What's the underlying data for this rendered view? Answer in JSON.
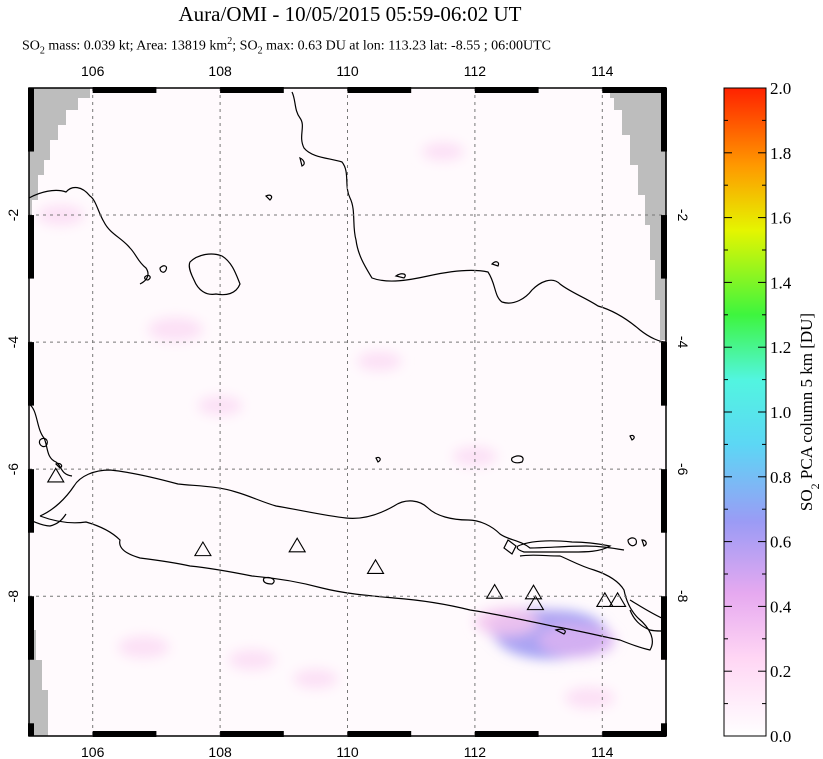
{
  "chart_data": {
    "type": "heatmap",
    "title": "Aura/OMI - 10/05/2015 05:59-06:02 UT",
    "subtitle": {
      "prefix": "SO",
      "p1": " mass: 0.039 kt; Area: 13819 km",
      "p2": "; SO",
      "p3": " max: 0.63 DU at lon: 113.23 lat: -8.55 ; 06:00UTC",
      "sub": "2",
      "sup": "2"
    },
    "x_axis": {
      "range": [
        105.0,
        115.0
      ],
      "ticks": [
        106,
        108,
        110,
        112,
        114
      ],
      "tick_labels": [
        "106",
        "108",
        "110",
        "112",
        "114"
      ]
    },
    "y_axis": {
      "range": [
        -10.2,
        0.0
      ],
      "ticks": [
        -2,
        -4,
        -6,
        -8
      ],
      "tick_labels": [
        "-2",
        "-4",
        "-6",
        "-8"
      ]
    },
    "grid": true,
    "colorbar": {
      "label": "SO2 PCA column 5 km [DU]",
      "range": [
        0.0,
        2.0
      ],
      "ticks": [
        0.0,
        0.2,
        0.4,
        0.6,
        0.8,
        1.0,
        1.2,
        1.4,
        1.6,
        1.8,
        2.0
      ],
      "tick_labels": [
        "0.0",
        "0.2",
        "0.4",
        "0.6",
        "0.8",
        "1.0",
        "1.2",
        "1.4",
        "1.6",
        "1.8",
        "2.0"
      ],
      "colors": [
        "#ffffff",
        "#ffb3ee",
        "#9b9bf5",
        "#5cf5f5",
        "#3ef53e",
        "#f5f500",
        "#ff9900",
        "#ff2200"
      ],
      "label_parts": {
        "a": "SO",
        "sub": "2",
        "b": " PCA column 5 km [DU]"
      }
    },
    "volcanoes": [
      {
        "lon": 105.42,
        "lat": -6.1
      },
      {
        "lon": 107.73,
        "lat": -7.26
      },
      {
        "lon": 109.21,
        "lat": -7.2
      },
      {
        "lon": 110.44,
        "lat": -7.54
      },
      {
        "lon": 112.31,
        "lat": -7.93
      },
      {
        "lon": 112.92,
        "lat": -7.94
      },
      {
        "lon": 112.95,
        "lat": -8.11
      },
      {
        "lon": 114.04,
        "lat": -8.06
      },
      {
        "lon": 114.24,
        "lat": -8.06
      }
    ],
    "so2_patches": [
      {
        "lon": 113.2,
        "lat": -8.6,
        "value": 0.63
      },
      {
        "lon": 112.9,
        "lat": -8.5,
        "value": 0.45
      },
      {
        "lon": 113.6,
        "lat": -8.7,
        "value": 0.35
      },
      {
        "lon": 112.5,
        "lat": -8.4,
        "value": 0.25
      },
      {
        "lon": 107.3,
        "lat": -3.8,
        "value": 0.18
      },
      {
        "lon": 106.8,
        "lat": -8.8,
        "value": 0.15
      },
      {
        "lon": 108.5,
        "lat": -9.0,
        "value": 0.12
      },
      {
        "lon": 113.8,
        "lat": -9.6,
        "value": 0.14
      },
      {
        "lon": 105.5,
        "lat": -2.0,
        "value": 0.12
      },
      {
        "lon": 108.0,
        "lat": -5.0,
        "value": 0.1
      },
      {
        "lon": 110.5,
        "lat": -4.3,
        "value": 0.1
      },
      {
        "lon": 112.0,
        "lat": -5.8,
        "value": 0.1
      },
      {
        "lon": 109.5,
        "lat": -9.3,
        "value": 0.1
      },
      {
        "lon": 111.5,
        "lat": -1.0,
        "value": 0.08
      }
    ]
  }
}
